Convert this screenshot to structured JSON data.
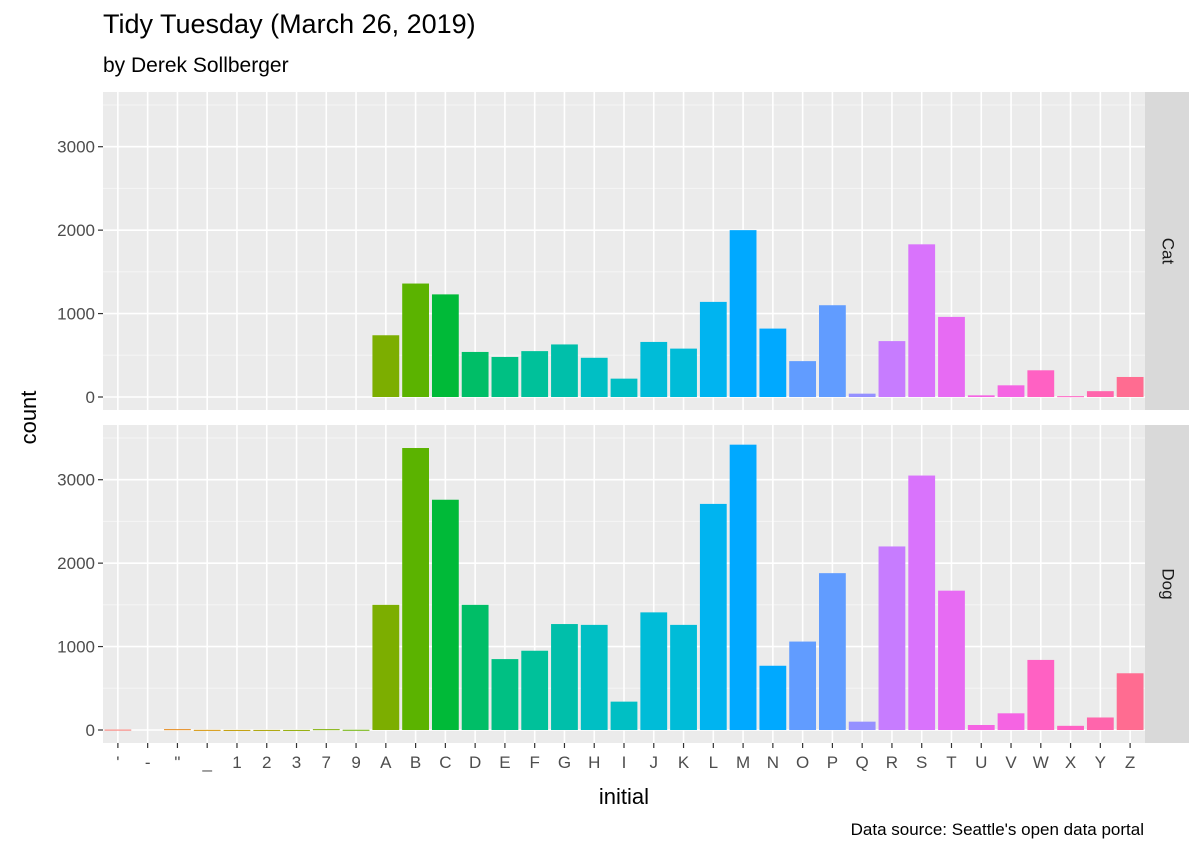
{
  "title": "Tidy Tuesday (March 26, 2019)",
  "subtitle": "by Derek Sollberger",
  "caption": "Data source: Seattle's open data portal",
  "chart_data": {
    "type": "bar",
    "facet": "rows",
    "xlabel": "initial",
    "ylabel": "count",
    "ylim": [
      0,
      3500
    ],
    "yticks": [
      0,
      1000,
      2000,
      3000
    ],
    "grid": true,
    "legend": "none",
    "categories": [
      "'",
      "-",
      "\"",
      "_",
      "1",
      "2",
      "3",
      "7",
      "9",
      "A",
      "B",
      "C",
      "D",
      "E",
      "F",
      "G",
      "H",
      "I",
      "J",
      "K",
      "L",
      "M",
      "N",
      "O",
      "P",
      "Q",
      "R",
      "S",
      "T",
      "U",
      "V",
      "W",
      "X",
      "Y",
      "Z"
    ],
    "colors": [
      "#F8766D",
      "#F07E4B",
      "#E68613",
      "#D49200",
      "#C09B00",
      "#AAA200",
      "#8FAA00",
      "#7CAE00",
      "#6BB100",
      "#7CAE00",
      "#5BB300",
      "#00BA38",
      "#00BE67",
      "#00C083",
      "#00C19A",
      "#00BFAA",
      "#00BFC4",
      "#00BFC4",
      "#00BCD8",
      "#00BCD8",
      "#00B4F0",
      "#00A9FF",
      "#00A9FF",
      "#619CFF",
      "#619CFF",
      "#9590FF",
      "#C77CFF",
      "#D973FC",
      "#E76BF3",
      "#F564E3",
      "#F564E3",
      "#FF61C3",
      "#FF61C3",
      "#FF65AC",
      "#FF6C91"
    ],
    "panels": [
      {
        "label": "Cat",
        "values": [
          0,
          0,
          0,
          0,
          0,
          0,
          0,
          0,
          0,
          740,
          1360,
          1230,
          540,
          480,
          550,
          630,
          470,
          220,
          660,
          580,
          1140,
          2000,
          820,
          430,
          1100,
          40,
          670,
          1830,
          960,
          20,
          140,
          320,
          10,
          70,
          240
        ]
      },
      {
        "label": "Dog",
        "values": [
          5,
          0,
          10,
          2,
          1,
          1,
          1,
          10,
          3,
          1500,
          3380,
          2760,
          1500,
          850,
          950,
          1270,
          1260,
          340,
          1410,
          1260,
          2710,
          3420,
          770,
          1060,
          1880,
          100,
          2200,
          3050,
          1670,
          60,
          200,
          840,
          50,
          150,
          680
        ]
      }
    ]
  }
}
